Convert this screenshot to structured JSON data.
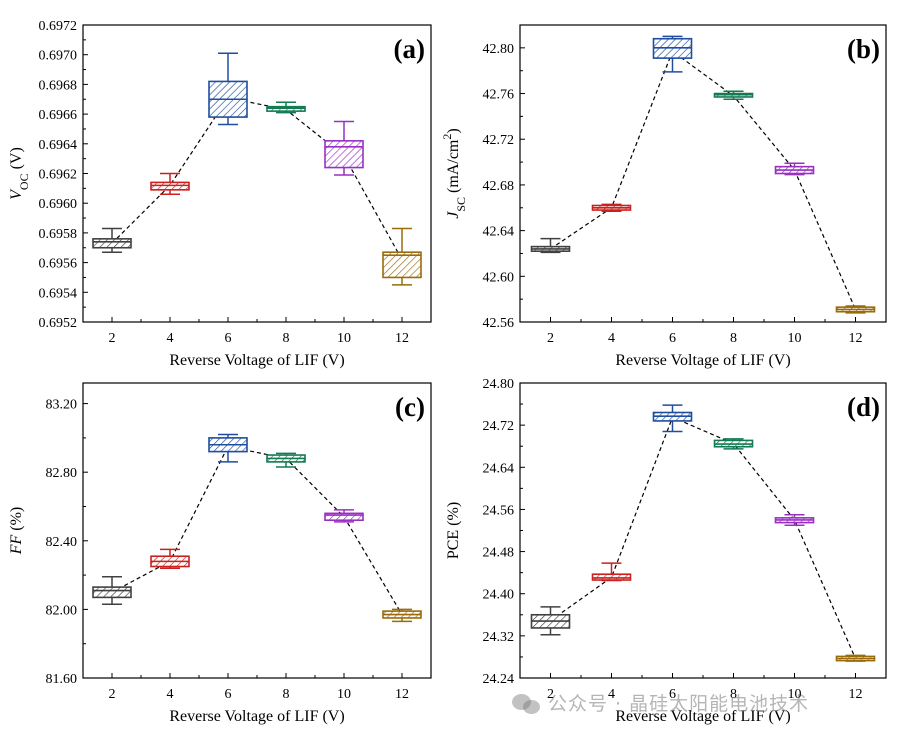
{
  "chart_data": [
    {
      "panel": "(a)",
      "type": "box",
      "xlabel": "Reverse Voltage of LIF (V)",
      "ylabel": "V_oc (V)",
      "ylabel_main": "V",
      "ylabel_sub": "OC",
      "ylabel_rest": " (V)",
      "categories": [
        "2",
        "4",
        "6",
        "8",
        "10",
        "12"
      ],
      "ylim": [
        0.6952,
        0.6972
      ],
      "yticks": [
        "0.6952",
        "0.6954",
        "0.6956",
        "0.6958",
        "0.6960",
        "0.6962",
        "0.6964",
        "0.6966",
        "0.6968",
        "0.6970",
        "0.6972"
      ],
      "boxes": [
        {
          "x": "2",
          "whisker_low": 0.69567,
          "q1": 0.6957,
          "median": 0.69574,
          "q3": 0.69576,
          "whisker_high": 0.69583,
          "mean": 0.69573
        },
        {
          "x": "4",
          "whisker_low": 0.69606,
          "q1": 0.69609,
          "median": 0.69612,
          "q3": 0.69614,
          "whisker_high": 0.6962,
          "mean": 0.69612
        },
        {
          "x": "6",
          "whisker_low": 0.69653,
          "q1": 0.69658,
          "median": 0.6967,
          "q3": 0.69682,
          "whisker_high": 0.69701,
          "mean": 0.69671
        },
        {
          "x": "8",
          "whisker_low": 0.69661,
          "q1": 0.69662,
          "median": 0.69664,
          "q3": 0.69665,
          "whisker_high": 0.69668,
          "mean": 0.69663
        },
        {
          "x": "10",
          "whisker_low": 0.69619,
          "q1": 0.69624,
          "median": 0.69638,
          "q3": 0.69642,
          "whisker_high": 0.69655,
          "mean": 0.69632
        },
        {
          "x": "12",
          "whisker_low": 0.69545,
          "q1": 0.6955,
          "median": 0.69565,
          "q3": 0.69567,
          "whisker_high": 0.69583,
          "mean": 0.69562
        }
      ]
    },
    {
      "panel": "(b)",
      "type": "box",
      "xlabel": "Reverse Voltage of LIF (V)",
      "ylabel": "J_SC (mA/cm^2)",
      "ylabel_main": "J",
      "ylabel_sub": "SC",
      "ylabel_rest": " (mA/cm",
      "ylabel_sup": "2",
      "ylabel_end": ")",
      "categories": [
        "2",
        "4",
        "6",
        "8",
        "10",
        "12"
      ],
      "ylim": [
        42.56,
        42.82
      ],
      "yticks": [
        "42.56",
        "42.60",
        "42.64",
        "42.68",
        "42.72",
        "42.76",
        "42.80"
      ],
      "boxes": [
        {
          "x": "2",
          "whisker_low": 42.621,
          "q1": 42.622,
          "median": 42.624,
          "q3": 42.626,
          "whisker_high": 42.633,
          "mean": 42.624
        },
        {
          "x": "4",
          "whisker_low": 42.657,
          "q1": 42.658,
          "median": 42.66,
          "q3": 42.662,
          "whisker_high": 42.663,
          "mean": 42.66
        },
        {
          "x": "6",
          "whisker_low": 42.779,
          "q1": 42.791,
          "median": 42.8,
          "q3": 42.808,
          "whisker_high": 42.81,
          "mean": 42.797
        },
        {
          "x": "8",
          "whisker_low": 42.755,
          "q1": 42.757,
          "median": 42.759,
          "q3": 42.76,
          "whisker_high": 42.762,
          "mean": 42.758
        },
        {
          "x": "10",
          "whisker_low": 42.689,
          "q1": 42.69,
          "median": 42.693,
          "q3": 42.696,
          "whisker_high": 42.699,
          "mean": 42.693
        },
        {
          "x": "12",
          "whisker_low": 42.568,
          "q1": 42.569,
          "median": 42.571,
          "q3": 42.573,
          "whisker_high": 42.574,
          "mean": 42.571
        }
      ]
    },
    {
      "panel": "(c)",
      "type": "box",
      "xlabel": "Reverse Voltage of LIF (V)",
      "ylabel": "FF (%)",
      "ylabel_main": "FF",
      "ylabel_rest": " (%)",
      "categories": [
        "2",
        "4",
        "6",
        "8",
        "10",
        "12"
      ],
      "ylim": [
        81.6,
        83.32
      ],
      "yticks": [
        "81.60",
        "82.00",
        "82.40",
        "82.80",
        "83.20"
      ],
      "boxes": [
        {
          "x": "2",
          "whisker_low": 82.03,
          "q1": 82.07,
          "median": 82.11,
          "q3": 82.13,
          "whisker_high": 82.19,
          "mean": 82.1
        },
        {
          "x": "4",
          "whisker_low": 82.24,
          "q1": 82.25,
          "median": 82.28,
          "q3": 82.31,
          "whisker_high": 82.35,
          "mean": 82.28
        },
        {
          "x": "6",
          "whisker_low": 82.86,
          "q1": 82.92,
          "median": 82.96,
          "q3": 83.0,
          "whisker_high": 83.02,
          "mean": 82.95
        },
        {
          "x": "8",
          "whisker_low": 82.83,
          "q1": 82.86,
          "median": 82.88,
          "q3": 82.9,
          "whisker_high": 82.91,
          "mean": 82.88
        },
        {
          "x": "10",
          "whisker_low": 82.51,
          "q1": 82.52,
          "median": 82.55,
          "q3": 82.56,
          "whisker_high": 82.58,
          "mean": 82.54
        },
        {
          "x": "12",
          "whisker_low": 81.93,
          "q1": 81.95,
          "median": 81.97,
          "q3": 81.99,
          "whisker_high": 82.0,
          "mean": 81.97
        }
      ]
    },
    {
      "panel": "(d)",
      "type": "box",
      "xlabel": "Reverse Voltage of LIF (V)",
      "ylabel": "PCE (%)",
      "ylabel_main": "PCE",
      "ylabel_rest": " (%)",
      "categories": [
        "2",
        "4",
        "6",
        "8",
        "10",
        "12"
      ],
      "ylim": [
        24.24,
        24.8
      ],
      "yticks": [
        "24.24",
        "24.32",
        "24.40",
        "24.48",
        "24.56",
        "24.64",
        "24.72",
        "24.80"
      ],
      "boxes": [
        {
          "x": "2",
          "whisker_low": 24.322,
          "q1": 24.335,
          "median": 24.348,
          "q3": 24.36,
          "whisker_high": 24.375,
          "mean": 24.349
        },
        {
          "x": "4",
          "whisker_low": 24.425,
          "q1": 24.426,
          "median": 24.43,
          "q3": 24.437,
          "whisker_high": 24.458,
          "mean": 24.431
        },
        {
          "x": "6",
          "whisker_low": 24.708,
          "q1": 24.728,
          "median": 24.737,
          "q3": 24.744,
          "whisker_high": 24.758,
          "mean": 24.735
        },
        {
          "x": "8",
          "whisker_low": 24.675,
          "q1": 24.679,
          "median": 24.684,
          "q3": 24.691,
          "whisker_high": 24.694,
          "mean": 24.685
        },
        {
          "x": "10",
          "whisker_low": 24.53,
          "q1": 24.535,
          "median": 24.54,
          "q3": 24.544,
          "whisker_high": 24.55,
          "mean": 24.54
        },
        {
          "x": "12",
          "whisker_low": 24.272,
          "q1": 24.273,
          "median": 24.277,
          "q3": 24.281,
          "whisker_high": 24.283,
          "mean": 24.277
        }
      ]
    }
  ],
  "colors": [
    "#404040",
    "#cc1f1f",
    "#1f4ea0",
    "#137a52",
    "#9a30c2",
    "#9a6b0d"
  ],
  "watermark": {
    "text": "公众号 · 晶硅太阳能电池技术",
    "icon": "wechat-icon"
  }
}
